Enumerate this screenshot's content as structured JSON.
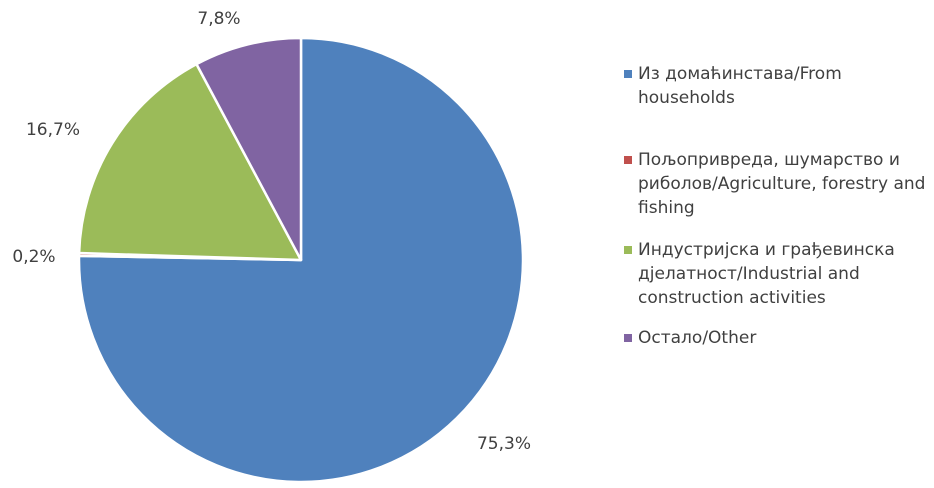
{
  "chart_data": {
    "type": "pie",
    "categories": [
      "Из домаћинстава/From households",
      "Пољопривреда, шумарство и риболов/Agriculture, forestry and fishing",
      "Индустријска и грађевинска дјелатност/Industrial and construction activities",
      "Остало/Other"
    ],
    "values": [
      75.3,
      0.2,
      16.7,
      7.8
    ],
    "data_labels": [
      "75,3%",
      "0,2%",
      "16,7%",
      "7,8%"
    ],
    "colors": [
      "#4F81BD",
      "#C0504D",
      "#9BBB59",
      "#8064A2"
    ],
    "legend_position": "right",
    "start_angle": "12 o'clock",
    "direction": "clockwise"
  }
}
